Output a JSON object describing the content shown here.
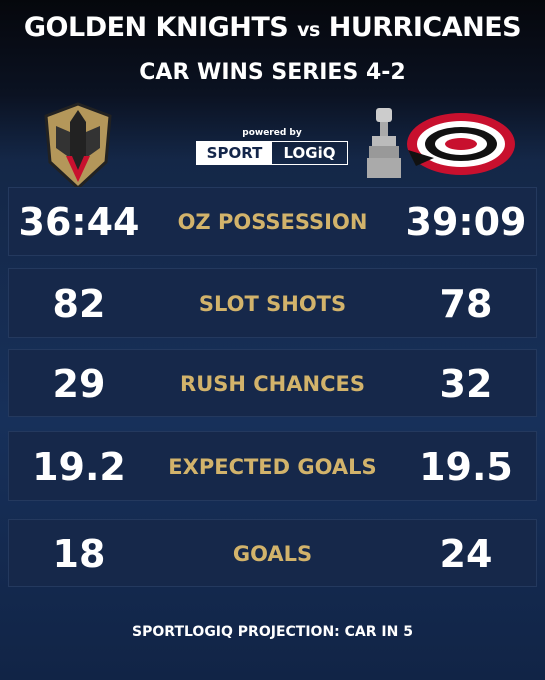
{
  "header": {
    "team_left": "GOLDEN KNIGHTS",
    "vs": "vs",
    "team_right": "HURRICANES",
    "subtitle": "CAR WINS SERIES 4-2"
  },
  "brand": {
    "powered_by": "powered by",
    "sport": "SPORT",
    "logiq": "LOGiQ"
  },
  "rows": [
    {
      "left": "36:44",
      "label": "OZ POSSESSION",
      "right": "39:09"
    },
    {
      "left": 82,
      "label": "SLOT SHOTS",
      "right": 78
    },
    {
      "left": 29,
      "label": "RUSH CHANCES",
      "right": 32
    },
    {
      "left": 19.2,
      "label": "EXPECTED GOALS",
      "right": 19.5
    },
    {
      "left": 18,
      "label": "GOALS",
      "right": 24
    }
  ],
  "footer": "SPORTLOGIQ PROJECTION: CAR IN 5"
}
